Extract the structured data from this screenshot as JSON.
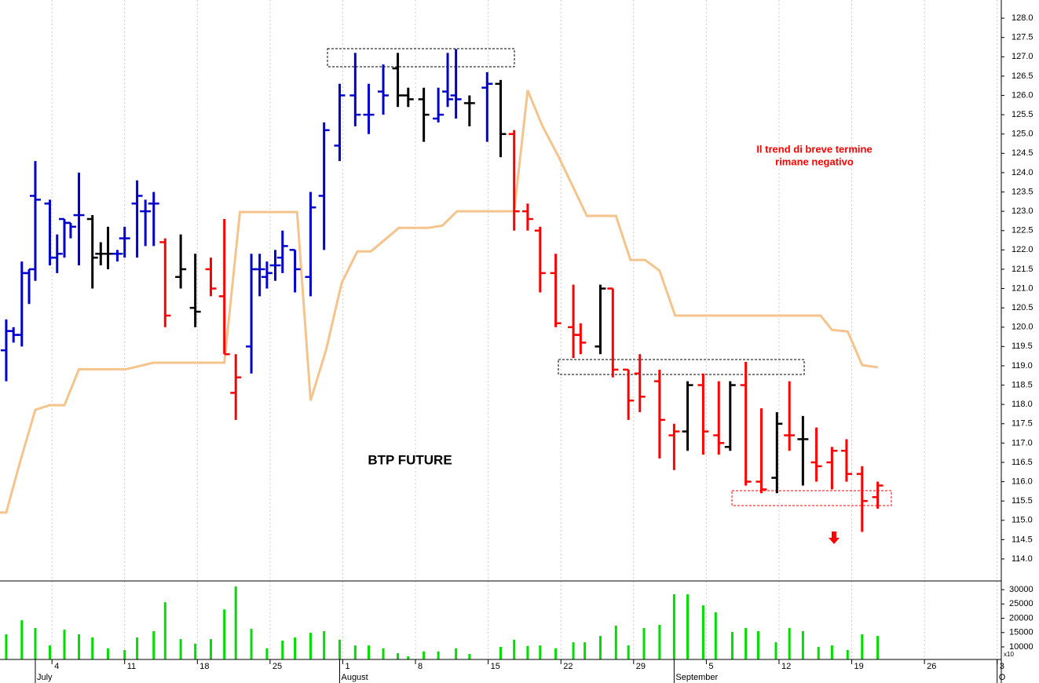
{
  "chart_data": [
    {
      "type": "ohlc",
      "x": [
        -0.4,
        0.3,
        1.1,
        1.8,
        2.4,
        3.8,
        4.5,
        5.2,
        5.8,
        6.6,
        7.9,
        8.7,
        9.4,
        10.3,
        11.0,
        12.2,
        13.0,
        13.8,
        14.9,
        16.4,
        17.8,
        19.3,
        20.6,
        21.7,
        23.2,
        24.0,
        24.7,
        25.5,
        26.2,
        27.4,
        28.9,
        30.2,
        31.7,
        33.2,
        34.5,
        35.9,
        37.3,
        38.3,
        39.8,
        41.2,
        42.1,
        42.9,
        44.2,
        45.9,
        47.2,
        48.5,
        49.8,
        51.0,
        52.5,
        54.2,
        54.9,
        56.8,
        58.0,
        59.5,
        60.6,
        62.5,
        63.9,
        65.2,
        66.7,
        68.2,
        69.3,
        70.8,
        72.3,
        73.8,
        75.0,
        76.3,
        77.6,
        79.1,
        80.5,
        82.0,
        83.5
      ],
      "open": [
        119.4,
        119.9,
        119.8,
        121.4,
        123.4,
        123.2,
        121.8,
        122.8,
        122.7,
        122.9,
        122.8,
        121.9,
        121.9,
        121.9,
        122.3,
        123.2,
        123.0,
        123.2,
        122.2,
        121.3,
        120.5,
        121.5,
        120.8,
        118.3,
        119.5,
        121.5,
        121.3,
        121.6,
        121.8,
        122.0,
        121.3,
        123.4,
        124.7,
        126.0,
        125.5,
        126.1,
        126.7,
        126.0,
        125.9,
        125.4,
        126.1,
        126.0,
        125.8,
        126.2,
        126.3,
        125.0,
        123.0,
        122.5,
        121.4,
        120.0,
        119.8,
        119.5,
        121.0,
        118.9,
        118.8,
        118.6,
        117.2,
        117.3,
        118.5,
        117.2,
        116.9,
        118.5,
        116.0,
        116.1,
        117.2,
        117.1,
        116.5,
        116.5,
        116.8,
        116.2,
        115.6
      ],
      "high": [
        120.2,
        120.0,
        121.7,
        121.5,
        124.3,
        123.3,
        122.4,
        122.8,
        122.7,
        124.0,
        122.9,
        122.2,
        122.6,
        122.0,
        122.6,
        123.8,
        123.3,
        123.5,
        122.3,
        122.4,
        121.9,
        121.8,
        122.8,
        119.3,
        121.9,
        121.9,
        121.7,
        122.0,
        122.5,
        122.0,
        123.5,
        125.3,
        126.3,
        127.1,
        126.3,
        126.8,
        127.1,
        126.2,
        126.2,
        126.2,
        127.1,
        127.2,
        126.0,
        126.6,
        126.4,
        125.1,
        123.2,
        122.6,
        121.9,
        121.1,
        120.1,
        121.1,
        121.0,
        118.9,
        119.3,
        118.9,
        117.5,
        118.6,
        118.8,
        118.6,
        118.6,
        119.1,
        117.9,
        117.8,
        118.6,
        117.7,
        117.4,
        116.9,
        117.1,
        116.4,
        116.0
      ],
      "low": [
        118.6,
        119.6,
        119.5,
        120.6,
        121.2,
        121.6,
        121.4,
        121.8,
        122.3,
        121.6,
        121.0,
        121.6,
        121.5,
        121.7,
        121.8,
        121.8,
        122.1,
        122.1,
        120.0,
        121.0,
        120.0,
        120.8,
        119.3,
        117.6,
        118.8,
        120.8,
        121.0,
        121.2,
        121.4,
        120.9,
        120.8,
        122.0,
        124.3,
        125.2,
        125.0,
        125.5,
        125.7,
        125.7,
        124.8,
        125.3,
        125.7,
        125.4,
        125.2,
        124.8,
        124.4,
        122.5,
        122.5,
        120.9,
        120.0,
        119.2,
        119.3,
        119.3,
        118.7,
        117.6,
        117.8,
        116.6,
        116.3,
        116.8,
        116.7,
        116.7,
        116.8,
        115.9,
        115.7,
        115.7,
        116.8,
        115.9,
        116.0,
        115.8,
        116.0,
        114.7,
        115.3
      ],
      "close": [
        119.9,
        119.8,
        121.4,
        121.5,
        123.3,
        121.8,
        121.9,
        122.7,
        122.6,
        122.9,
        121.8,
        121.9,
        121.9,
        121.9,
        122.3,
        123.4,
        123.0,
        123.2,
        120.3,
        121.5,
        120.4,
        121.0,
        119.3,
        118.7,
        121.5,
        121.5,
        121.4,
        121.6,
        122.1,
        121.5,
        123.1,
        125.1,
        126.0,
        125.5,
        125.5,
        126.0,
        126.0,
        125.9,
        125.5,
        125.5,
        125.9,
        125.9,
        125.8,
        126.3,
        125.0,
        123.0,
        122.8,
        121.4,
        120.1,
        119.8,
        119.6,
        121.0,
        118.9,
        118.1,
        118.2,
        117.6,
        117.3,
        118.5,
        117.3,
        117.0,
        118.5,
        116.0,
        115.8,
        117.5,
        117.2,
        117.1,
        116.4,
        116.8,
        116.2,
        115.5,
        115.9
      ],
      "colors": [
        "#0000cc",
        "#0000cc",
        "#0000cc",
        "#0000cc",
        "#0000cc",
        "#0000cc",
        "#0000cc",
        "#0000cc",
        "#0000cc",
        "#0000cc",
        "#000000",
        "#000000",
        "#000000",
        "#0000cc",
        "#0000cc",
        "#0000cc",
        "#0000cc",
        "#0000cc",
        "#ff0000",
        "#000000",
        "#000000",
        "#ff0000",
        "#ff0000",
        "#ff0000",
        "#0000cc",
        "#0000cc",
        "#0000cc",
        "#0000cc",
        "#0000cc",
        "#0000cc",
        "#0000cc",
        "#0000cc",
        "#0000cc",
        "#0000cc",
        "#0000cc",
        "#0000cc",
        "#000000",
        "#000000",
        "#000000",
        "#0000cc",
        "#0000cc",
        "#0000cc",
        "#000000",
        "#0000cc",
        "#000000",
        "#ff0000",
        "#ff0000",
        "#ff0000",
        "#ff0000",
        "#ff0000",
        "#ff0000",
        "#000000",
        "#ff0000",
        "#ff0000",
        "#ff0000",
        "#ff0000",
        "#ff0000",
        "#000000",
        "#ff0000",
        "#ff0000",
        "#000000",
        "#ff0000",
        "#ff0000",
        "#000000",
        "#ff0000",
        "#000000",
        "#ff0000",
        "#ff0000",
        "#ff0000",
        "#ff0000",
        "#ff0000"
      ],
      "line": {
        "color": "#f5c38c",
        "x": [
          -1.0,
          -0.4,
          0.9,
          2.4,
          3.8,
          5.2,
          6.6,
          11.1,
          13.8,
          20.6,
          22.1,
          27.6,
          28.9,
          30.4,
          31.9,
          33.4,
          34.7,
          37.4,
          40.2,
          41.6,
          43.0,
          48.5,
          49.8,
          51.2,
          52.8,
          55.5,
          58.3,
          59.7,
          61.1,
          62.5,
          64.0,
          78.0,
          79.1,
          80.6,
          82.0,
          83.5
        ],
        "values": [
          115.2,
          115.2,
          116.48,
          117.86,
          117.98,
          117.98,
          118.91,
          118.91,
          119.08,
          119.08,
          122.98,
          122.98,
          118.1,
          119.42,
          121.15,
          121.96,
          121.96,
          122.57,
          122.57,
          122.63,
          123.0,
          123.0,
          126.13,
          125.22,
          124.4,
          122.88,
          122.88,
          121.74,
          121.74,
          121.46,
          120.3,
          120.3,
          119.93,
          119.89,
          119.02,
          118.96
        ]
      },
      "xlim": [
        -1.0,
        95.4
      ],
      "ylim": [
        113.43,
        128.47
      ],
      "yticks": [
        {
          "value": 114,
          "label": "114.0"
        },
        {
          "value": 114.5,
          "label": "114.5"
        },
        {
          "value": 115,
          "label": "115.0"
        },
        {
          "value": 115.5,
          "label": "115.5"
        },
        {
          "value": 116,
          "label": "116.0"
        },
        {
          "value": 116.5,
          "label": "116.5"
        },
        {
          "value": 117,
          "label": "117.0"
        },
        {
          "value": 117.5,
          "label": "117.5"
        },
        {
          "value": 118,
          "label": "118.0"
        },
        {
          "value": 118.5,
          "label": "118.5"
        },
        {
          "value": 119,
          "label": "119.0"
        },
        {
          "value": 119.5,
          "label": "119.5"
        },
        {
          "value": 120,
          "label": "120.0"
        },
        {
          "value": 120.5,
          "label": "120.5"
        },
        {
          "value": 121,
          "label": "121.0"
        },
        {
          "value": 121.5,
          "label": "121.5"
        },
        {
          "value": 122,
          "label": "122.0"
        },
        {
          "value": 122.5,
          "label": "122.5"
        },
        {
          "value": 123,
          "label": "123.0"
        },
        {
          "value": 123.5,
          "label": "123.5"
        },
        {
          "value": 124,
          "label": "124.0"
        },
        {
          "value": 124.5,
          "label": "124.5"
        },
        {
          "value": 125,
          "label": "125.0"
        },
        {
          "value": 125.5,
          "label": "125.5"
        },
        {
          "value": 126,
          "label": "126.0"
        },
        {
          "value": 126.5,
          "label": "126.5"
        },
        {
          "value": 127,
          "label": "127.0"
        },
        {
          "value": 127.5,
          "label": "127.5"
        },
        {
          "value": 128,
          "label": "128.0"
        }
      ],
      "annotations": [
        "BTP FUTURE",
        "Il trend di breve termine",
        "rimane negativo"
      ]
    },
    {
      "type": "bar",
      "color": "#00dd00",
      "x": [
        -0.4,
        1.1,
        2.4,
        3.8,
        5.2,
        6.6,
        7.9,
        9.4,
        11.0,
        12.2,
        13.8,
        14.9,
        16.4,
        17.8,
        19.3,
        20.6,
        21.7,
        23.2,
        24.7,
        26.2,
        27.4,
        28.9,
        30.2,
        31.7,
        33.2,
        34.5,
        35.9,
        37.3,
        38.3,
        39.8,
        41.2,
        42.9,
        44.2,
        47.2,
        48.5,
        49.8,
        51.0,
        52.5,
        54.2,
        55.3,
        56.8,
        58.3,
        59.5,
        61.0,
        62.5,
        63.9,
        65.2,
        66.7,
        67.9,
        69.5,
        70.8,
        72.0,
        73.7,
        75.0,
        76.3,
        77.8,
        79.1,
        80.6,
        82.0,
        83.5
      ],
      "values": [
        14400,
        19300,
        16600,
        10500,
        16000,
        14400,
        13300,
        9500,
        8900,
        13300,
        15500,
        25600,
        12700,
        11100,
        12700,
        23100,
        31100,
        16300,
        9500,
        12200,
        13300,
        14900,
        15500,
        12500,
        10500,
        10500,
        9500,
        7800,
        6700,
        8400,
        8400,
        9500,
        7500,
        10000,
        12500,
        10300,
        10500,
        9500,
        11600,
        11600,
        13800,
        17400,
        10500,
        16600,
        17700,
        28400,
        28400,
        24500,
        22100,
        15200,
        16600,
        15500,
        11600,
        16600,
        15500,
        10000,
        10500,
        8900,
        14400,
        13800
      ],
      "xlim": [
        -1.0,
        95.4
      ],
      "ylim": [
        5600,
        32500
      ],
      "yticks": [
        10000,
        15000,
        20000,
        25000,
        30000
      ],
      "y_multiplier_label": "x10",
      "xticks": [
        {
          "value": 4,
          "label": "4"
        },
        {
          "value": 11,
          "label": "11"
        },
        {
          "value": 18,
          "label": "18"
        },
        {
          "value": 25,
          "label": "25"
        },
        {
          "value": 32,
          "label": "1"
        },
        {
          "value": 39,
          "label": "8"
        },
        {
          "value": 46,
          "label": "15"
        },
        {
          "value": 53,
          "label": "22"
        },
        {
          "value": 60,
          "label": "29"
        },
        {
          "value": 67,
          "label": "5"
        },
        {
          "value": 74,
          "label": "12"
        },
        {
          "value": 81,
          "label": "19"
        },
        {
          "value": 88,
          "label": "26"
        },
        {
          "value": 95,
          "label": "3"
        }
      ],
      "month_ticks": [
        {
          "value": 2.4,
          "label": "July"
        },
        {
          "value": 31.7,
          "label": "August"
        },
        {
          "value": 63.9,
          "label": "September"
        },
        {
          "value": 95,
          "label": "O"
        }
      ]
    }
  ]
}
